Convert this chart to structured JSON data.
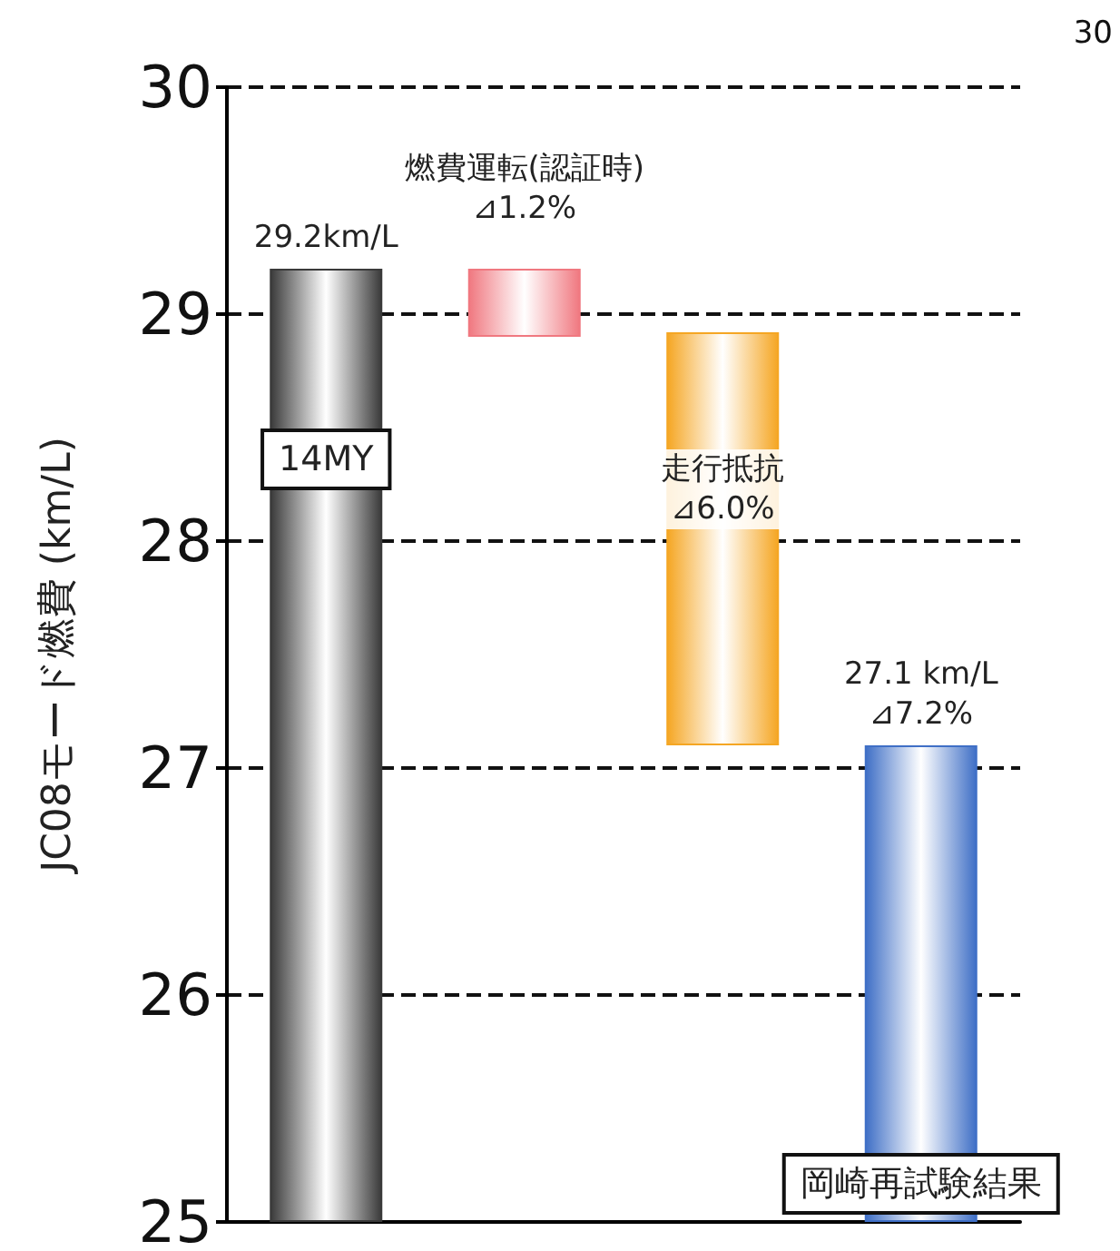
{
  "chart_data": {
    "type": "bar",
    "ylabel": "JC08モード燃費 (km/L)",
    "categories": [
      null,
      null,
      null,
      null
    ],
    "values": [
      4.2,
      0.3,
      1.82,
      2.1
    ],
    "base": [
      25,
      28.9,
      27.1,
      25
    ],
    "colors": [
      "#3a3a3a",
      "#f07880",
      "#f5a623",
      "#3f6fc6"
    ],
    "annotations": [
      "29.2km/L",
      "燃費運転(認証時)\n⊿1.2%",
      "走行抵抗\n⊿6.0%",
      "27.1 km/L\n⊿7.2%",
      "14MY",
      "岡崎再試験結果",
      "30"
    ],
    "ylim": [
      25,
      30
    ],
    "yticks": [
      25,
      26,
      27,
      28,
      29,
      30
    ],
    "grid": "y",
    "tick_labels": "y"
  }
}
